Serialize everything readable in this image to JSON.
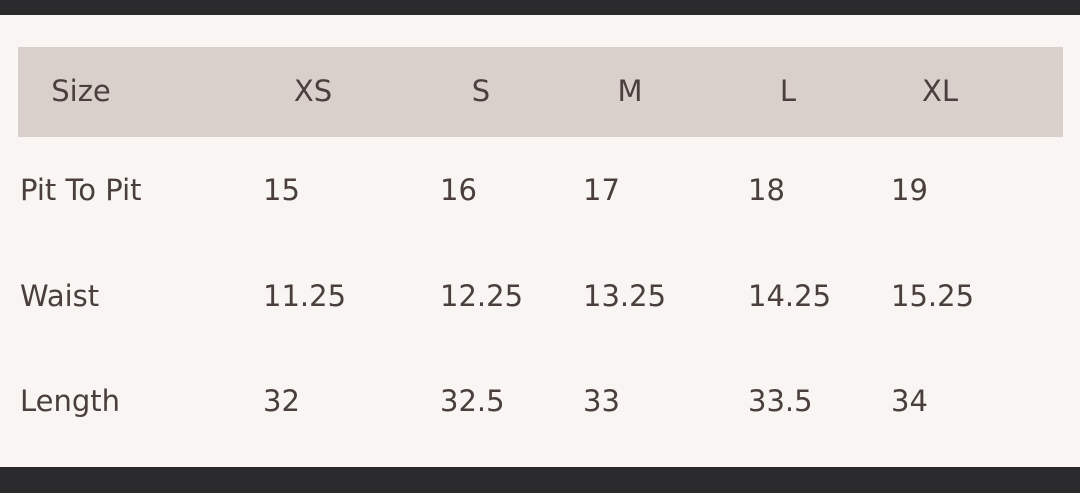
{
  "table": {
    "header": [
      "Size",
      "XS",
      "S",
      "M",
      "L",
      "XL"
    ],
    "rows": [
      [
        "Pit To Pit",
        "15",
        "16",
        "17",
        "18",
        "19"
      ],
      [
        "Waist",
        "11.25",
        "12.25",
        "13.25",
        "14.25",
        "15.25"
      ],
      [
        "Length",
        "32",
        "32.5",
        "33",
        "33.5",
        "34"
      ]
    ]
  }
}
